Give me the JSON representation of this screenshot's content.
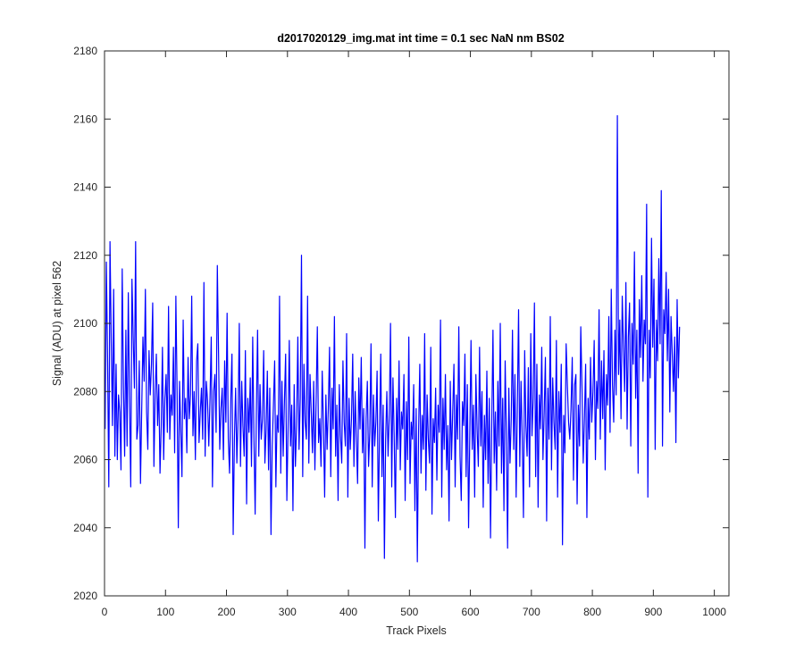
{
  "chart_data": {
    "type": "line",
    "title": "d2017020129_img.mat int time = 0.1 sec  NaN nm BS02",
    "xlabel": "Track Pixels",
    "ylabel": "Signal (ADU) at pixel 562",
    "xlim": [
      0,
      1024
    ],
    "ylim": [
      2020,
      2180
    ],
    "xticks": [
      0,
      100,
      200,
      300,
      400,
      500,
      600,
      700,
      800,
      900,
      1000
    ],
    "yticks": [
      2020,
      2040,
      2060,
      2080,
      2100,
      2120,
      2140,
      2160,
      2180
    ],
    "grid": false,
    "legend": "none",
    "series": [
      {
        "color": "#0000ff",
        "sampling": "one point per 2 track pixels (decimated reading of the dense trace)",
        "x_start": 1,
        "x_step": 2,
        "values": [
          2069,
          2118,
          2090,
          2052,
          2124,
          2095,
          2070,
          2110,
          2061,
          2088,
          2060,
          2079,
          2074,
          2057,
          2116,
          2082,
          2061,
          2098,
          2064,
          2109,
          2077,
          2052,
          2113,
          2096,
          2081,
          2124,
          2066,
          2070,
          2089,
          2053,
          2075,
          2096,
          2083,
          2110,
          2074,
          2063,
          2092,
          2079,
          2088,
          2106,
          2058,
          2079,
          2091,
          2070,
          2082,
          2056,
          2070,
          2093,
          2060,
          2078,
          2085,
          2068,
          2105,
          2066,
          2079,
          2073,
          2093,
          2062,
          2108,
          2080,
          2040,
          2083,
          2069,
          2055,
          2101,
          2072,
          2078,
          2062,
          2090,
          2072,
          2079,
          2108,
          2067,
          2080,
          2060,
          2089,
          2094,
          2065,
          2074,
          2081,
          2066,
          2112,
          2061,
          2083,
          2077,
          2064,
          2078,
          2096,
          2052,
          2080,
          2085,
          2068,
          2117,
          2091,
          2063,
          2075,
          2081,
          2060,
          2089,
          2071,
          2103,
          2066,
          2056,
          2077,
          2091,
          2038,
          2066,
          2081,
          2059,
          2072,
          2100,
          2058,
          2083,
          2070,
          2061,
          2092,
          2047,
          2078,
          2068,
          2084,
          2058,
          2096,
          2067,
          2044,
          2074,
          2098,
          2061,
          2082,
          2066,
          2072,
          2092,
          2059,
          2069,
          2086,
          2057,
          2081,
          2038,
          2064,
          2076,
          2089,
          2052,
          2073,
          2068,
          2108,
          2056,
          2083,
          2061,
          2077,
          2091,
          2048,
          2069,
          2095,
          2064,
          2076,
          2045,
          2082,
          2058,
          2070,
          2096,
          2063,
          2078,
          2120,
          2055,
          2088,
          2071,
          2066,
          2108,
          2059,
          2085,
          2074,
          2062,
          2083,
          2057,
          2077,
          2099,
          2065,
          2072,
          2058,
          2086,
          2070,
          2049,
          2079,
          2063,
          2075,
          2093,
          2055,
          2081,
          2069,
          2102,
          2061,
          2076,
          2048,
          2082,
          2067,
          2059,
          2089,
          2071,
          2064,
          2097,
          2049,
          2078,
          2063,
          2072,
          2091,
          2058,
          2080,
          2066,
          2053,
          2084,
          2069,
          2090,
          2062,
          2075,
          2034,
          2072,
          2083,
          2058,
          2068,
          2094,
          2052,
          2079,
          2064,
          2071,
          2086,
          2042,
          2068,
          2091,
          2055,
          2076,
          2031,
          2066,
          2080,
          2061,
          2073,
          2100,
          2052,
          2084,
          2067,
          2043,
          2078,
          2063,
          2089,
          2057,
          2074,
          2069,
          2085,
          2048,
          2077,
          2060,
          2096,
          2053,
          2071,
          2066,
          2082,
          2045,
          2075,
          2030,
          2068,
          2088,
          2056,
          2073,
          2063,
          2097,
          2051,
          2079,
          2066,
          2059,
          2093,
          2044,
          2072,
          2065,
          2081,
          2054,
          2076,
          2068,
          2101,
          2049,
          2078,
          2063,
          2085,
          2057,
          2070,
          2042,
          2083,
          2060,
          2074,
          2088,
          2052,
          2079,
          2066,
          2099,
          2061,
          2048,
          2077,
          2070,
          2091,
          2055,
          2082,
          2040,
          2067,
          2095,
          2063,
          2076,
          2049,
          2085,
          2069,
          2058,
          2093,
          2064,
          2080,
          2046,
          2073,
          2060,
          2086,
          2053,
          2078,
          2037,
          2070,
          2098,
          2059,
          2074,
          2051,
          2083,
          2064,
          2100,
          2056,
          2078,
          2045,
          2089,
          2067,
          2034,
          2081,
          2059,
          2072,
          2098,
          2063,
          2085,
          2049,
          2076,
          2104,
          2058,
          2083,
          2066,
          2043,
          2092,
          2070,
          2061,
          2087,
          2052,
          2097,
          2067,
          2078,
          2106,
          2055,
          2088,
          2046,
          2079,
          2069,
          2093,
          2060,
          2074,
          2090,
          2042,
          2081,
          2066,
          2102,
          2057,
          2084,
          2071,
          2063,
          2095,
          2049,
          2080,
          2068,
          2088,
          2035,
          2073,
          2062,
          2094,
          2082,
          2071,
          2066,
          2075,
          2090,
          2054,
          2082,
          2085,
          2047,
          2076,
          2064,
          2099,
          2081,
          2059,
          2072,
          2088,
          2043,
          2078,
          2066,
          2090,
          2071,
          2080,
          2095,
          2060,
          2083,
          2075,
          2104,
          2066,
          2089,
          2072,
          2092,
          2057,
          2085,
          2076,
          2102,
          2068,
          2110,
          2082,
          2071,
          2098,
          2079,
          2161,
          2085,
          2101,
          2072,
          2108,
          2093,
          2080,
          2112,
          2069,
          2096,
          2106,
          2064,
          2100,
          2088,
          2121,
          2078,
          2098,
          2056,
          2107,
          2090,
          2114,
          2083,
          2101,
          2094,
          2135,
          2049,
          2098,
          2084,
          2125,
          2093,
          2113,
          2063,
          2101,
          2089,
          2119,
          2094,
          2139,
          2064,
          2104,
          2097,
          2115,
          2089,
          2110,
          2074,
          2102,
          2091,
          2080,
          2096,
          2065,
          2107,
          2084,
          2099
        ]
      }
    ]
  }
}
